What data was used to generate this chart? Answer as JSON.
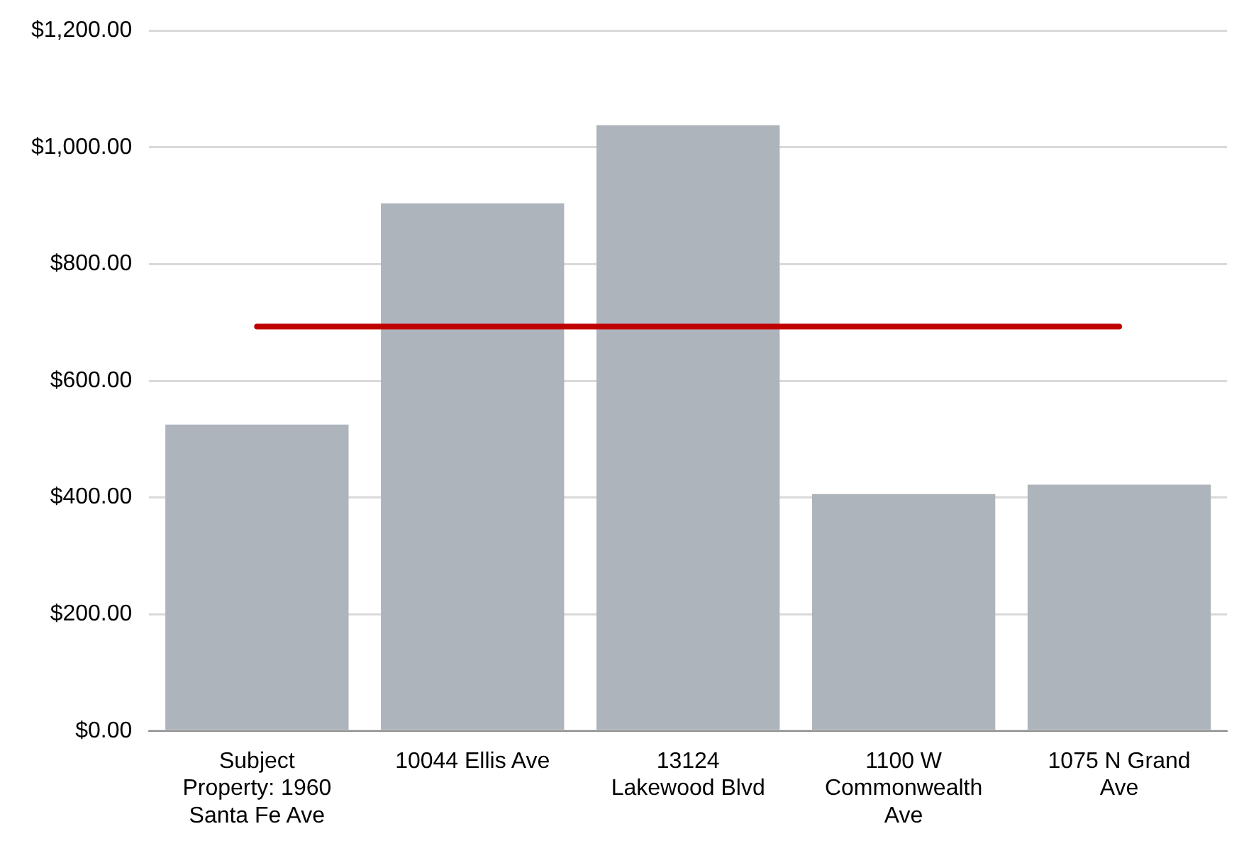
{
  "chart_data": {
    "type": "bar",
    "categories": [
      "Subject Property: 1960 Santa Fe Ave",
      "10044 Ellis Ave",
      "13124 Lakewood Blvd",
      "1100 W Commonwealth Ave",
      "1075 N Grand Ave"
    ],
    "series": [
      {
        "color": "#aeb4bb",
        "values": [
          525,
          904,
          1038,
          406,
          422
        ]
      },
      {
        "type": "line",
        "color": "#c00000",
        "values": [
          693,
          693,
          693,
          693,
          693
        ]
      }
    ],
    "ylim": [
      0,
      1200
    ],
    "yticks": [
      {
        "value": 0,
        "label": "$0.00"
      },
      {
        "value": 200,
        "label": "$200.00"
      },
      {
        "value": 400,
        "label": "$400.00"
      },
      {
        "value": 600,
        "label": "$600.00"
      },
      {
        "value": 800,
        "label": "$800.00"
      },
      {
        "value": 1000,
        "label": "$1,000.00"
      },
      {
        "value": 1200,
        "label": "$1,200.00"
      }
    ],
    "grid": "y",
    "legend": false,
    "marker": "none",
    "line_style": "solid"
  }
}
